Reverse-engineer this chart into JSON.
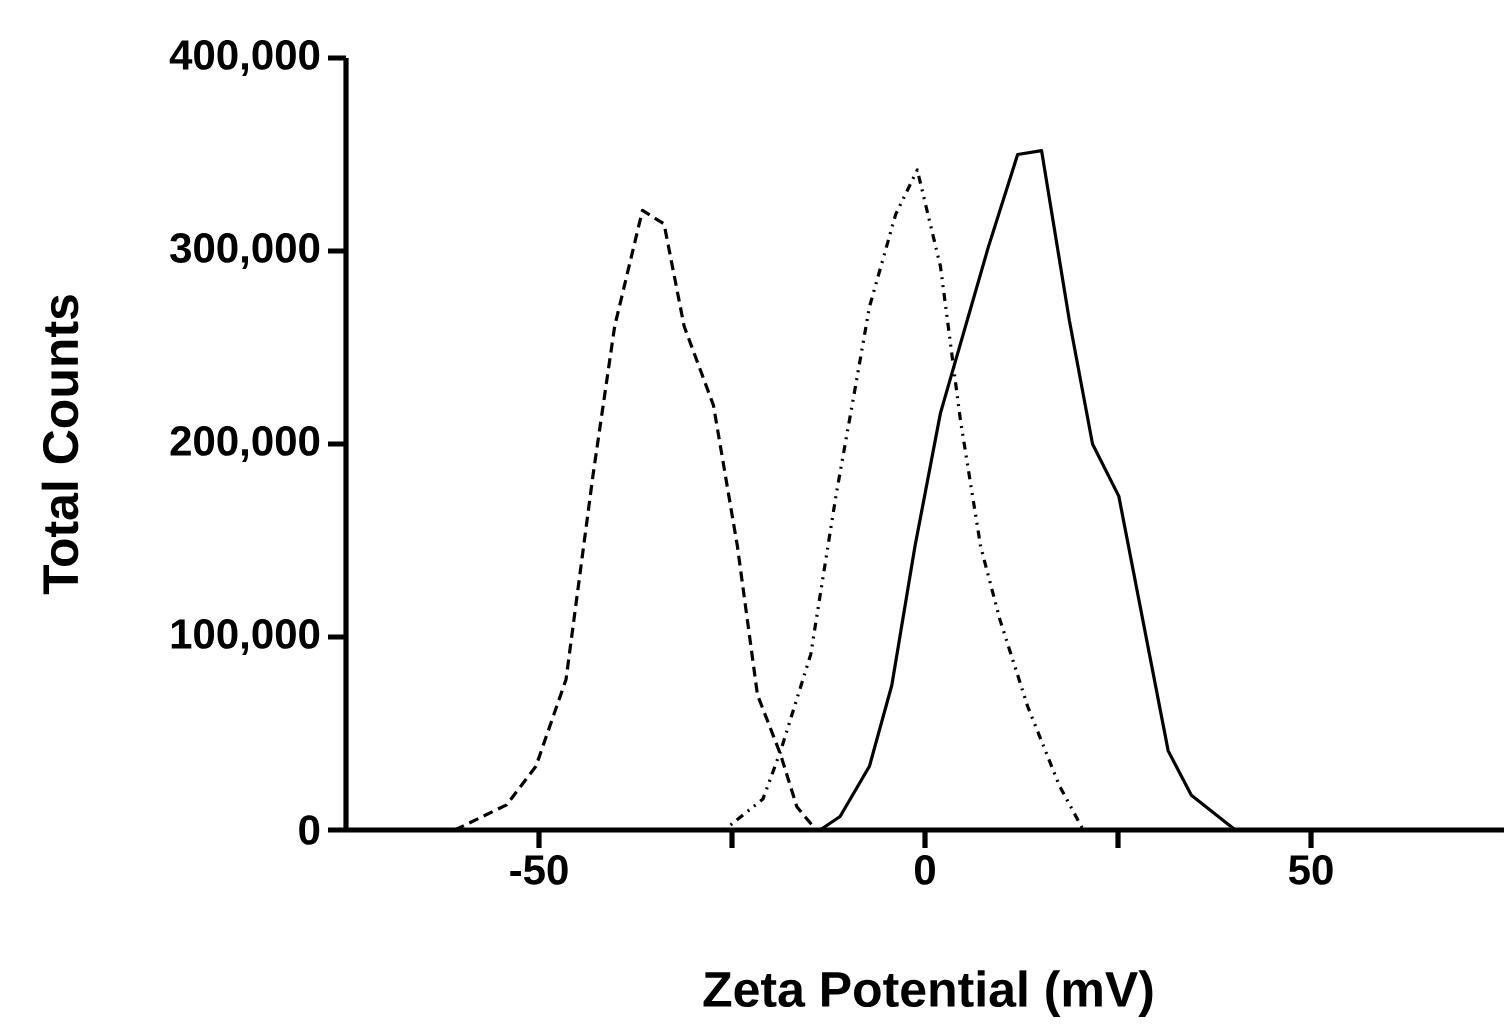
{
  "chart_data": {
    "type": "line",
    "xlabel": "Zeta Potential (mV)",
    "ylabel": "Total  Counts",
    "xlim": [
      -75,
      75
    ],
    "ylim": [
      0,
      400000
    ],
    "xticks": [
      -50,
      {
        "value": -25,
        "label": null
      },
      0,
      {
        "value": 25,
        "label": null
      },
      50
    ],
    "yticks": [
      {
        "value": 0,
        "label": "0"
      },
      {
        "value": 100000,
        "label": "100,000"
      },
      {
        "value": 200000,
        "label": "200,000"
      },
      {
        "value": 300000,
        "label": "300,000"
      },
      {
        "value": 400000,
        "label": "400,000"
      }
    ],
    "grid": false,
    "marker": "none",
    "series": [
      {
        "color": "#000000",
        "line_style": "dashed",
        "x": [
          -60.9,
          -54.2,
          -50.4,
          -46.5,
          -43,
          -40.2,
          -36.6,
          -33.8,
          -31.2,
          -27.4,
          -24.3,
          -21.7,
          -18.7,
          -16.6,
          -14.1
        ],
        "values": [
          0,
          13000,
          33000,
          78000,
          184000,
          261000,
          321000,
          314000,
          261000,
          220000,
          147000,
          70000,
          39000,
          12000,
          0
        ]
      },
      {
        "color": "#000000",
        "line_style": "dotted",
        "x": [
          -26,
          -21,
          -18.7,
          -14.8,
          -11.5,
          -9,
          -7.2,
          -3.8,
          -1,
          2,
          4.6,
          7.2,
          9.7,
          13.3,
          17.4,
          20.5
        ],
        "values": [
          0,
          16000,
          41000,
          91000,
          174000,
          230000,
          271000,
          319000,
          342000,
          292000,
          212000,
          147000,
          109000,
          64000,
          23000,
          0
        ]
      },
      {
        "color": "#000000",
        "line_style": "solid",
        "x": [
          -13.6,
          -11,
          -7.2,
          -4.3,
          -1.3,
          2,
          8.2,
          12,
          15.1,
          18.7,
          21.7,
          25.1,
          31.5,
          34.5,
          40.2
        ],
        "values": [
          0,
          7000,
          33000,
          75000,
          147000,
          216000,
          302000,
          350000,
          352000,
          264000,
          200000,
          173000,
          41000,
          18000,
          0
        ]
      }
    ]
  }
}
